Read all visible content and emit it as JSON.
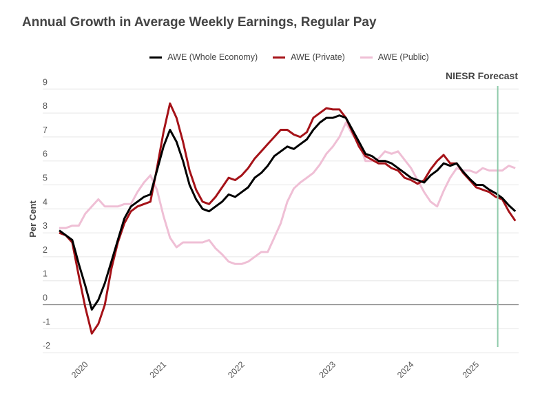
{
  "chart_data": {
    "type": "line",
    "title": "Annual Growth in Average Weekly Earnings, Regular Pay",
    "ylabel": "Per Cent",
    "xlabel": "",
    "ylim": [
      -2,
      9
    ],
    "yticks": [
      9,
      8,
      7,
      6,
      5,
      4,
      3,
      2,
      1,
      0,
      -1,
      -2
    ],
    "xticks": [
      {
        "label": "2020",
        "at_index": 4.5
      },
      {
        "label": "2021",
        "at_index": 16.5
      },
      {
        "label": "2022",
        "at_index": 28.5
      },
      {
        "label": "2023",
        "at_index": 42.5
      },
      {
        "label": "2024",
        "at_index": 54.5
      },
      {
        "label": "2025",
        "at_index": 64.5
      }
    ],
    "grid": true,
    "legend_position": "top",
    "annotation": {
      "label": "NIESR Forecast",
      "at_index": 67.3,
      "color": "#8fcbab"
    },
    "series": [
      {
        "name": "AWE (Whole Economy)",
        "color": "#000000",
        "values": [
          3.1,
          2.9,
          2.7,
          1.7,
          0.8,
          -0.2,
          0.2,
          0.9,
          1.8,
          2.7,
          3.6,
          4.1,
          4.3,
          4.5,
          4.6,
          5.6,
          6.6,
          7.3,
          6.8,
          6.0,
          5.0,
          4.4,
          4.0,
          3.9,
          4.1,
          4.3,
          4.6,
          4.5,
          4.7,
          4.9,
          5.3,
          5.5,
          5.8,
          6.2,
          6.4,
          6.6,
          6.5,
          6.7,
          6.9,
          7.3,
          7.6,
          7.8,
          7.8,
          7.9,
          7.8,
          7.3,
          6.8,
          6.3,
          6.2,
          6.0,
          6.0,
          5.9,
          5.7,
          5.5,
          5.3,
          5.2,
          5.1,
          5.4,
          5.6,
          5.9,
          5.8,
          5.9,
          5.55,
          5.25,
          5.0,
          5.0,
          4.8,
          4.65,
          4.45,
          4.15,
          3.9
        ]
      },
      {
        "name": "AWE (Private)",
        "color": "#a51218",
        "values": [
          3.0,
          2.9,
          2.6,
          1.2,
          -0.1,
          -1.2,
          -0.8,
          0.0,
          1.5,
          2.6,
          3.4,
          3.9,
          4.1,
          4.2,
          4.3,
          5.7,
          7.2,
          8.4,
          7.8,
          6.8,
          5.6,
          4.8,
          4.3,
          4.2,
          4.5,
          4.9,
          5.3,
          5.2,
          5.4,
          5.7,
          6.1,
          6.4,
          6.7,
          7.0,
          7.3,
          7.3,
          7.1,
          7.0,
          7.2,
          7.8,
          8.0,
          8.2,
          8.15,
          8.15,
          7.8,
          7.2,
          6.6,
          6.2,
          6.05,
          5.9,
          5.9,
          5.7,
          5.6,
          5.3,
          5.2,
          5.05,
          5.2,
          5.65,
          6.0,
          6.25,
          5.9,
          5.9,
          5.5,
          5.2,
          4.9,
          4.8,
          4.7,
          4.5,
          4.4,
          3.9,
          3.5
        ]
      },
      {
        "name": "AWE (Public)",
        "color": "#efbfd5",
        "values": [
          3.2,
          3.2,
          3.3,
          3.3,
          3.8,
          4.1,
          4.4,
          4.1,
          4.1,
          4.1,
          4.2,
          4.2,
          4.7,
          5.1,
          5.4,
          4.8,
          3.7,
          2.8,
          2.4,
          2.6,
          2.6,
          2.6,
          2.6,
          2.7,
          2.35,
          2.1,
          1.8,
          1.7,
          1.7,
          1.8,
          2.0,
          2.2,
          2.2,
          2.8,
          3.4,
          4.3,
          4.85,
          5.1,
          5.3,
          5.5,
          5.85,
          6.3,
          6.6,
          7.0,
          7.6,
          7.1,
          6.75,
          6.0,
          6.0,
          6.1,
          6.4,
          6.3,
          6.4,
          6.05,
          5.7,
          5.2,
          4.7,
          4.3,
          4.1,
          4.75,
          5.3,
          5.7,
          5.6,
          5.6,
          5.5,
          5.7,
          5.6,
          5.6,
          5.6,
          5.8,
          5.7
        ]
      }
    ]
  }
}
